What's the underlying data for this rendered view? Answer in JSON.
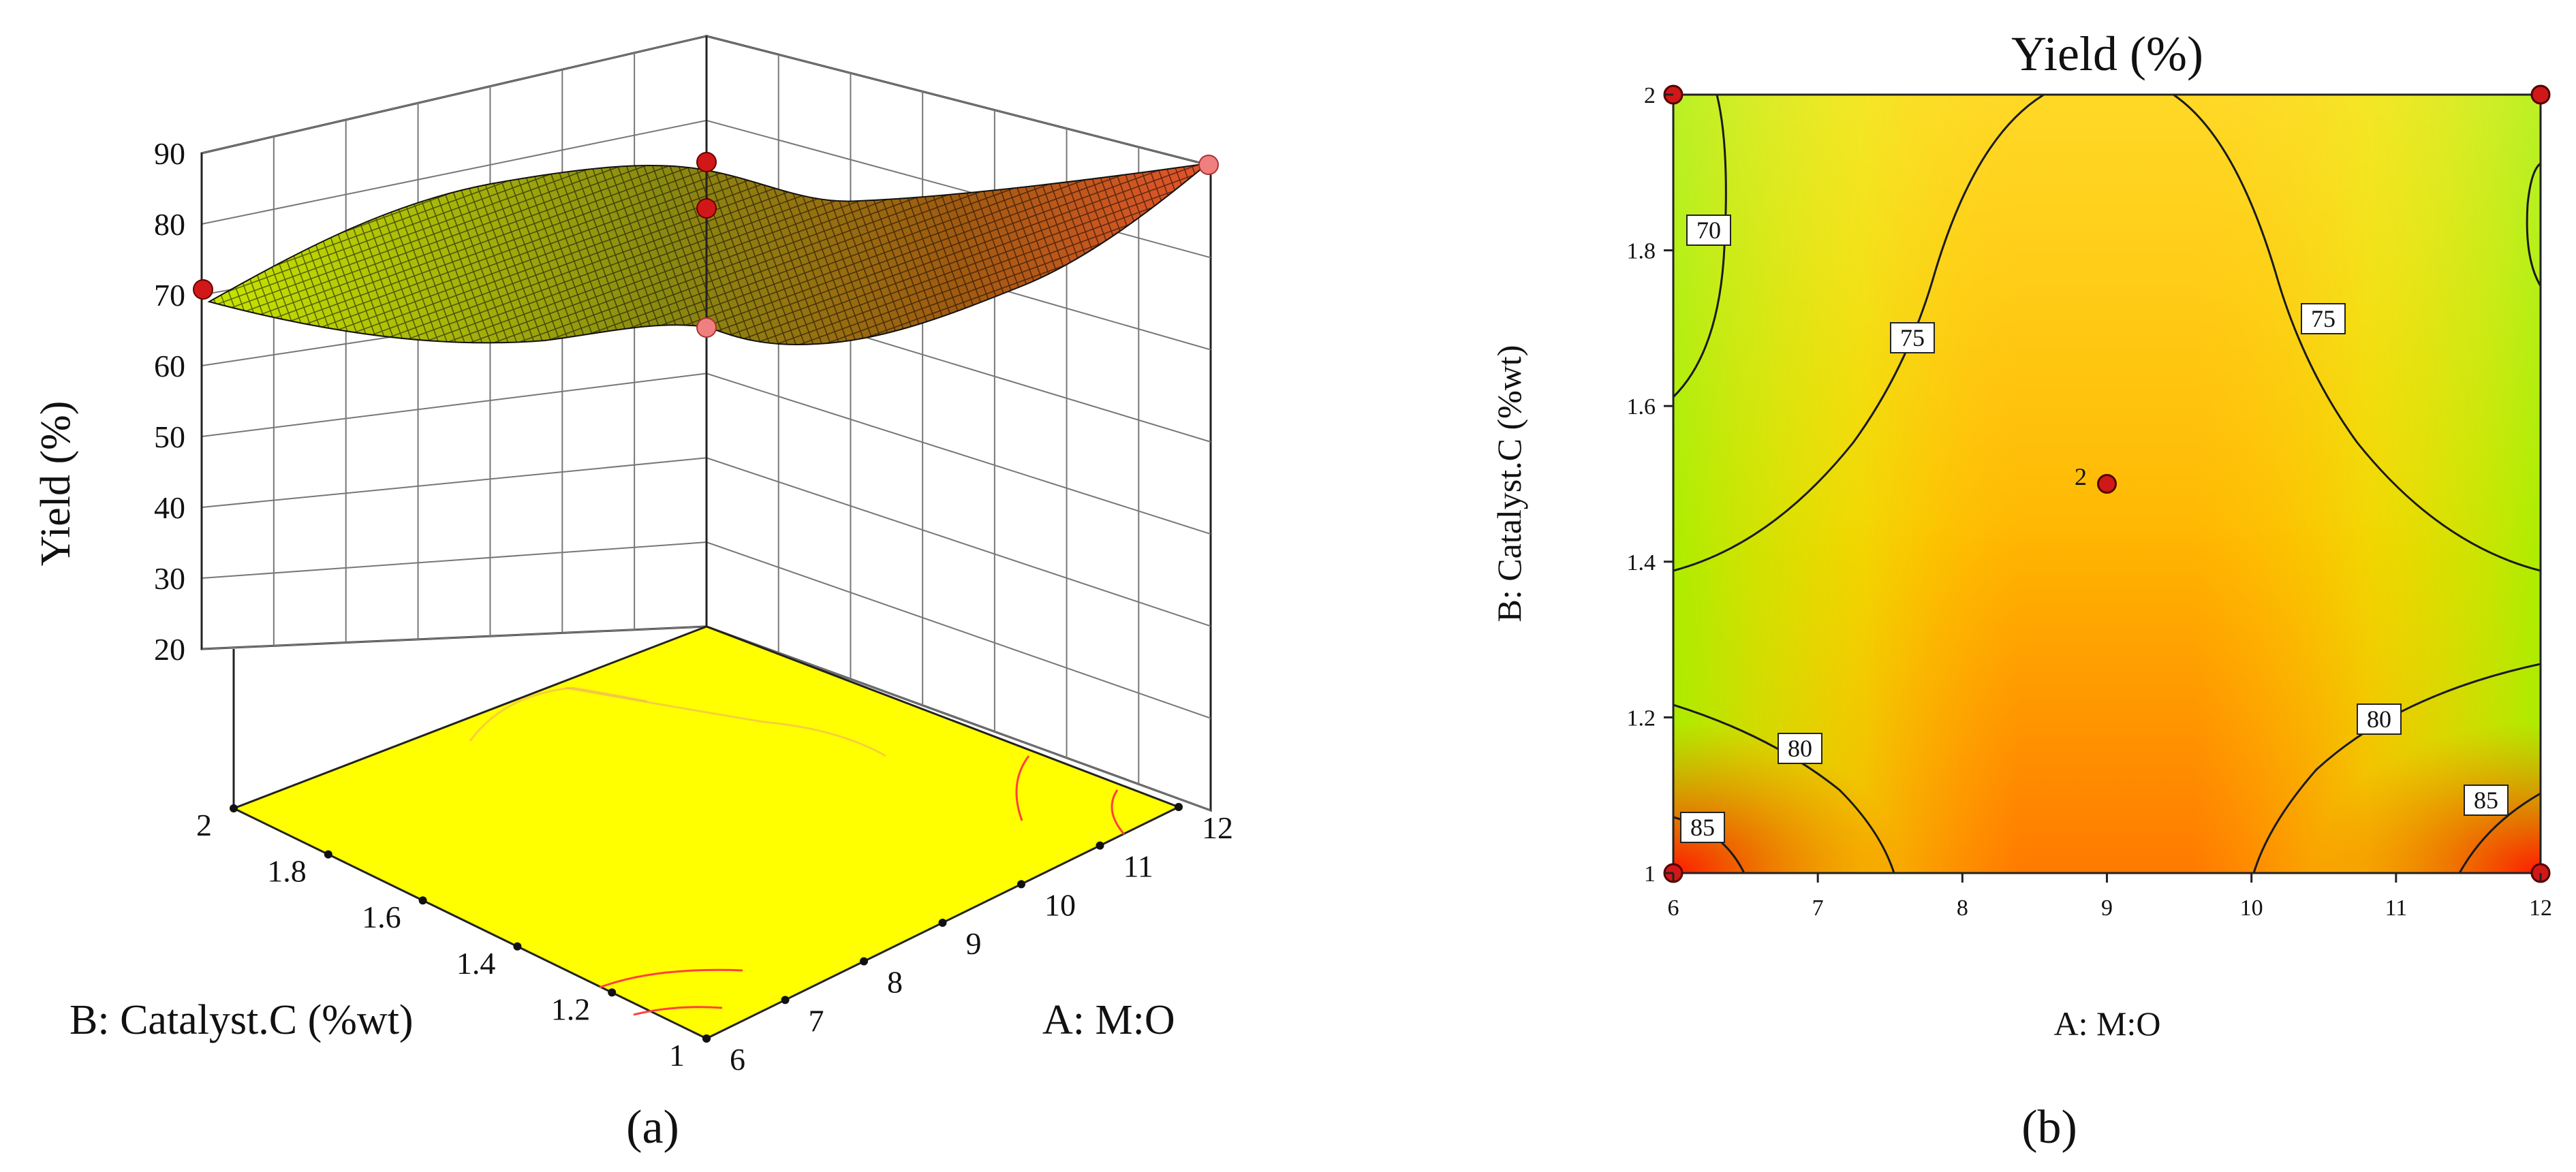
{
  "panels": [
    {
      "label": "(a)",
      "type": "surface3d",
      "zlabel": "Yield (%)",
      "xlabel": "A: M:O",
      "ylabel": "B: Catalyst.C (%wt)",
      "z_ticks": [
        "90",
        "80",
        "70",
        "60",
        "50",
        "40",
        "30",
        "20"
      ],
      "x_ticks": [
        "6",
        "7",
        "8",
        "9",
        "10",
        "11",
        "12"
      ],
      "y_ticks": [
        "2",
        "1.8",
        "1.6",
        "1.4",
        "1.2",
        "1"
      ]
    },
    {
      "label": "(b)",
      "type": "contour",
      "title": "Yield (%)",
      "xlabel": "A: M:O",
      "ylabel": "B: Catalyst.C (%wt)",
      "x_ticks": [
        "6",
        "7",
        "8",
        "9",
        "10",
        "11",
        "12"
      ],
      "y_ticks": [
        "2",
        "1.8",
        "1.6",
        "1.4",
        "1.2",
        "1"
      ],
      "center_count_label": "2"
    }
  ],
  "chart_data": [
    {
      "type": "surface3d",
      "title": "",
      "xlabel": "A: M:O",
      "ylabel": "B: Catalyst.C (%wt)",
      "zlabel": "Yield (%)",
      "xlim": [
        6,
        12
      ],
      "ylim": [
        1,
        2
      ],
      "zlim": [
        20,
        90
      ],
      "design_points": [
        {
          "x": 6,
          "y": 1,
          "z": 86,
          "marker": "dark-red"
        },
        {
          "x": 6,
          "y": 2,
          "z": 68,
          "marker": "dark-red"
        },
        {
          "x": 12,
          "y": 1,
          "z": 86,
          "marker": "light-red"
        },
        {
          "x": 12,
          "y": 2,
          "z": 69,
          "marker": "light-red"
        },
        {
          "x": 9,
          "y": 1.5,
          "z": 77,
          "marker": "dark-red"
        }
      ],
      "floor_color": "#ffff00"
    },
    {
      "type": "contour",
      "title": "Yield (%)",
      "xlabel": "A: M:O",
      "ylabel": "B: Catalyst.C (%wt)",
      "xlim": [
        6,
        12
      ],
      "ylim": [
        1,
        2
      ],
      "contour_levels": [
        70,
        75,
        80,
        85
      ],
      "design_points": [
        {
          "x": 6,
          "y": 1
        },
        {
          "x": 6,
          "y": 2
        },
        {
          "x": 12,
          "y": 1
        },
        {
          "x": 12,
          "y": 2
        },
        {
          "x": 9,
          "y": 1.5,
          "label": "2"
        }
      ],
      "colors": {
        "low": "#9cec00",
        "mid": "#ffcc00",
        "high": "#ff1a00"
      }
    }
  ]
}
